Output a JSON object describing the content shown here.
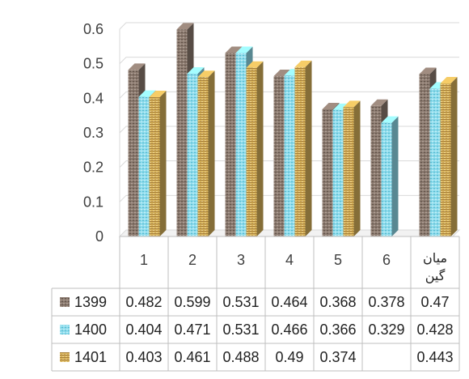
{
  "chart_data": {
    "type": "bar",
    "categories": [
      "1",
      "2",
      "3",
      "4",
      "5",
      "6",
      "میان گین"
    ],
    "category_lines": [
      [
        "1"
      ],
      [
        "2"
      ],
      [
        "3"
      ],
      [
        "4"
      ],
      [
        "5"
      ],
      [
        "6"
      ],
      [
        "میان",
        "گین"
      ]
    ],
    "series": [
      {
        "name": "1399",
        "values": [
          0.482,
          0.599,
          0.531,
          0.464,
          0.368,
          0.378,
          0.47
        ],
        "labels": [
          "0.482",
          "0.599",
          "0.531",
          "0.464",
          "0.368",
          "0.378",
          "0.47"
        ],
        "color": "#8c7b70"
      },
      {
        "name": "1400",
        "values": [
          0.404,
          0.471,
          0.531,
          0.466,
          0.366,
          0.329,
          0.428
        ],
        "labels": [
          "0.404",
          "0.471",
          "0.531",
          "0.466",
          "0.366",
          "0.329",
          "0.428"
        ],
        "color": "#8fdcec"
      },
      {
        "name": "1401",
        "values": [
          0.403,
          0.461,
          0.488,
          0.49,
          0.374,
          null,
          0.443
        ],
        "labels": [
          "0.403",
          "0.461",
          "0.488",
          "0.49",
          "0.374",
          "",
          "0.443"
        ],
        "color": "#d6b25a"
      }
    ],
    "yticks": [
      "0",
      "0.1",
      "0.2",
      "0.3",
      "0.4",
      "0.5",
      "0.6"
    ],
    "ylim": [
      0,
      0.6
    ],
    "grid": true,
    "legend": "data-table",
    "colors": {
      "grid": "#d9d9d9",
      "table_border": "#bfbfbf",
      "text": "#404040"
    }
  }
}
